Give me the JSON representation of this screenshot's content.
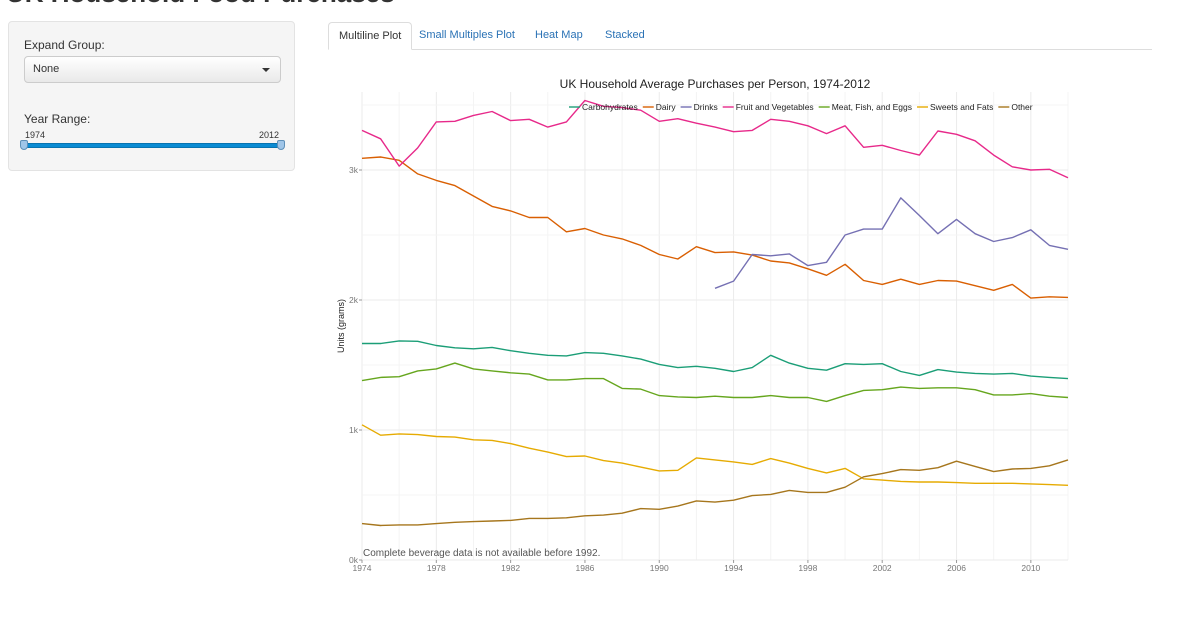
{
  "app": {
    "title": "UK Household Food Purchases"
  },
  "sidebar": {
    "expand_group_label": "Expand Group:",
    "expand_group_value": "None",
    "year_range_label": "Year Range:",
    "year_min": "1974",
    "year_max": "2012"
  },
  "tabs": [
    {
      "label": "Multiline Plot"
    },
    {
      "label": "Small Multiples Plot"
    },
    {
      "label": "Heat Map"
    },
    {
      "label": "Stacked"
    }
  ],
  "chart_data": {
    "type": "line",
    "title": "UK Household Average Purchases per Person, 1974-2012",
    "xlabel": "",
    "ylabel": "Units (grams)",
    "xlim": [
      1974,
      2012
    ],
    "ylim": [
      0,
      3600
    ],
    "x_ticks": [
      "1974",
      "1978",
      "1982",
      "1986",
      "1990",
      "1994",
      "1998",
      "2002",
      "2006",
      "2010"
    ],
    "y_ticks": [
      {
        "label": "0k",
        "value": 0
      },
      {
        "label": "1k",
        "value": 1000
      },
      {
        "label": "2k",
        "value": 2000
      },
      {
        "label": "3k",
        "value": 3000
      }
    ],
    "grid": true,
    "legend_position": "top-right",
    "annotation": "Complete beverage data is not available before 1992.",
    "x": [
      1974,
      1975,
      1976,
      1977,
      1978,
      1979,
      1980,
      1981,
      1982,
      1983,
      1984,
      1985,
      1986,
      1987,
      1988,
      1989,
      1990,
      1991,
      1992,
      1993,
      1994,
      1995,
      1996,
      1997,
      1998,
      1999,
      2000,
      2001,
      2002,
      2003,
      2004,
      2005,
      2006,
      2007,
      2008,
      2009,
      2010,
      2011,
      2012
    ],
    "series": [
      {
        "name": "Carbohydrates",
        "color": "#1b9e77",
        "values": [
          1665,
          1665,
          1685,
          1682,
          1650,
          1632,
          1625,
          1635,
          1610,
          1590,
          1575,
          1570,
          1595,
          1590,
          1570,
          1545,
          1505,
          1480,
          1490,
          1475,
          1450,
          1480,
          1575,
          1515,
          1475,
          1460,
          1510,
          1505,
          1510,
          1450,
          1420,
          1465,
          1445,
          1435,
          1430,
          1435,
          1415,
          1405,
          1395
        ]
      },
      {
        "name": "Dairy",
        "color": "#d95f02",
        "values": [
          3090,
          3100,
          3075,
          2970,
          2920,
          2880,
          2800,
          2720,
          2685,
          2635,
          2635,
          2525,
          2550,
          2500,
          2470,
          2420,
          2350,
          2315,
          2410,
          2365,
          2370,
          2345,
          2300,
          2285,
          2240,
          2190,
          2275,
          2150,
          2120,
          2160,
          2120,
          2150,
          2145,
          2110,
          2075,
          2120,
          2015,
          2025,
          2020
        ]
      },
      {
        "name": "Drinks",
        "color": "#7570b3",
        "values": [
          null,
          null,
          null,
          null,
          null,
          null,
          null,
          null,
          null,
          null,
          null,
          null,
          null,
          null,
          null,
          null,
          null,
          null,
          null,
          2090,
          2145,
          2350,
          2340,
          2355,
          2265,
          2290,
          2500,
          2545,
          2545,
          2785,
          2650,
          2510,
          2620,
          2510,
          2450,
          2480,
          2540,
          2420,
          2390
        ]
      },
      {
        "name": "Fruit and Vegetables",
        "color": "#e7298a",
        "values": [
          3305,
          3240,
          3030,
          3170,
          3370,
          3375,
          3420,
          3450,
          3380,
          3390,
          3330,
          3370,
          3535,
          3490,
          3480,
          3460,
          3375,
          3395,
          3360,
          3330,
          3295,
          3305,
          3390,
          3375,
          3340,
          3280,
          3340,
          3175,
          3190,
          3150,
          3115,
          3300,
          3275,
          3225,
          3115,
          3025,
          3000,
          3005,
          2940
        ]
      },
      {
        "name": "Meat, Fish, and Eggs",
        "color": "#66a61e",
        "values": [
          1380,
          1405,
          1410,
          1455,
          1470,
          1515,
          1470,
          1455,
          1440,
          1430,
          1385,
          1385,
          1395,
          1395,
          1320,
          1315,
          1265,
          1255,
          1250,
          1260,
          1250,
          1250,
          1265,
          1250,
          1250,
          1220,
          1265,
          1305,
          1310,
          1330,
          1320,
          1325,
          1325,
          1310,
          1270,
          1270,
          1280,
          1260,
          1250
        ]
      },
      {
        "name": "Sweets and Fats",
        "color": "#e6ab02",
        "values": [
          1040,
          960,
          970,
          965,
          950,
          945,
          925,
          920,
          895,
          860,
          830,
          795,
          800,
          765,
          745,
          715,
          685,
          690,
          785,
          770,
          755,
          735,
          780,
          745,
          705,
          670,
          705,
          625,
          615,
          605,
          600,
          600,
          595,
          590,
          590,
          590,
          585,
          580,
          575
        ]
      },
      {
        "name": "Other",
        "color": "#a6761d",
        "values": [
          280,
          265,
          270,
          270,
          280,
          290,
          295,
          300,
          305,
          320,
          320,
          325,
          340,
          345,
          360,
          395,
          390,
          415,
          455,
          445,
          460,
          495,
          505,
          535,
          520,
          520,
          560,
          640,
          665,
          695,
          690,
          710,
          760,
          720,
          680,
          700,
          705,
          725,
          770
        ]
      }
    ]
  }
}
